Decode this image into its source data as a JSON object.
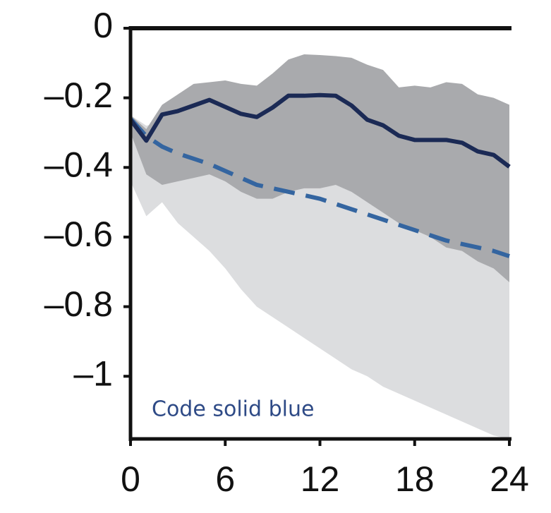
{
  "chart_data": {
    "type": "line",
    "x": [
      0,
      1,
      2,
      3,
      4,
      5,
      6,
      7,
      8,
      9,
      10,
      11,
      12,
      13,
      14,
      15,
      16,
      17,
      18,
      19,
      20,
      21,
      22,
      23,
      24
    ],
    "xlim": [
      0,
      24
    ],
    "xticks": [
      0,
      6,
      12,
      18,
      24
    ],
    "ylim": [
      -1.18,
      0
    ],
    "yticks": [
      0,
      {
        "value": -0.2,
        "label": "–0.2"
      },
      {
        "value": -0.4,
        "label": "–0.4"
      },
      {
        "value": -0.6,
        "label": "–0.6"
      },
      {
        "value": -0.8,
        "label": "–0.8"
      },
      {
        "value": -1,
        "label": "–1"
      }
    ],
    "bands": [
      {
        "color": "#dcdddf",
        "upper": [
          -0.25,
          -0.28,
          -0.27,
          -0.28,
          -0.29,
          -0.3,
          -0.32,
          -0.34,
          -0.36,
          -0.37,
          -0.38,
          -0.39,
          -0.4,
          -0.41,
          -0.42,
          -0.44,
          -0.45,
          -0.47,
          -0.48,
          -0.5,
          -0.51,
          -0.52,
          -0.53,
          -0.54,
          -0.56
        ],
        "lower": [
          -0.44,
          -0.54,
          -0.5,
          -0.56,
          -0.6,
          -0.64,
          -0.69,
          -0.75,
          -0.8,
          -0.83,
          -0.86,
          -0.89,
          -0.92,
          -0.95,
          -0.98,
          -1.0,
          -1.03,
          -1.05,
          -1.07,
          -1.09,
          -1.11,
          -1.13,
          -1.15,
          -1.17,
          -1.18
        ]
      },
      {
        "color": "#a9aaad",
        "upper": [
          -0.25,
          -0.29,
          -0.22,
          -0.19,
          -0.16,
          -0.155,
          -0.15,
          -0.16,
          -0.165,
          -0.13,
          -0.09,
          -0.075,
          -0.077,
          -0.08,
          -0.085,
          -0.105,
          -0.12,
          -0.17,
          -0.165,
          -0.17,
          -0.155,
          -0.16,
          -0.19,
          -0.2,
          -0.22
        ],
        "lower": [
          -0.3,
          -0.42,
          -0.45,
          -0.44,
          -0.43,
          -0.42,
          -0.44,
          -0.47,
          -0.49,
          -0.49,
          -0.47,
          -0.46,
          -0.46,
          -0.45,
          -0.47,
          -0.5,
          -0.53,
          -0.56,
          -0.58,
          -0.6,
          -0.63,
          -0.64,
          -0.67,
          -0.69,
          -0.73
        ]
      }
    ],
    "series": [
      {
        "color": "#3465a0",
        "style": "dashed",
        "values": [
          -0.26,
          -0.31,
          -0.34,
          -0.36,
          -0.375,
          -0.39,
          -0.41,
          -0.43,
          -0.45,
          -0.46,
          -0.47,
          -0.48,
          -0.49,
          -0.505,
          -0.52,
          -0.535,
          -0.55,
          -0.565,
          -0.58,
          -0.595,
          -0.61,
          -0.62,
          -0.63,
          -0.64,
          -0.655
        ]
      },
      {
        "color": "#1b2a55",
        "style": "solid",
        "values": [
          -0.263,
          -0.323,
          -0.248,
          -0.238,
          -0.222,
          -0.206,
          -0.226,
          -0.246,
          -0.255,
          -0.228,
          -0.194,
          -0.194,
          -0.192,
          -0.194,
          -0.222,
          -0.263,
          -0.279,
          -0.309,
          -0.321,
          -0.321,
          -0.321,
          -0.329,
          -0.354,
          -0.364,
          -0.398
        ]
      }
    ],
    "annotation": "Code solid blue"
  }
}
